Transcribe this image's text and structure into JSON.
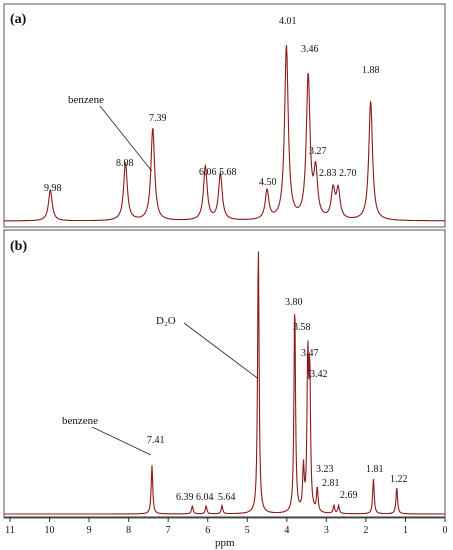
{
  "chart_data": [
    {
      "type": "line",
      "panel": "(a)",
      "xlabel": "",
      "xlim": [
        11,
        0
      ],
      "line_color": "#8b1a1a",
      "peaks": [
        {
          "x": 9.98,
          "label": "9.98",
          "h": 0.16
        },
        {
          "x": 8.08,
          "label": "8.08",
          "h": 0.3
        },
        {
          "x": 7.39,
          "label": "7.39",
          "h": 0.48
        },
        {
          "x": 6.06,
          "label": "6.06",
          "h": 0.28
        },
        {
          "x": 5.68,
          "label": "5.68",
          "h": 0.24
        },
        {
          "x": 4.5,
          "label": "4.50",
          "h": 0.15
        },
        {
          "x": 4.01,
          "label": "4.01",
          "h": 0.9
        },
        {
          "x": 3.46,
          "label": "3.46",
          "h": 0.74
        },
        {
          "x": 3.27,
          "label": "3.27",
          "h": 0.24
        },
        {
          "x": 2.83,
          "label": "2.83",
          "h": 0.15
        },
        {
          "x": 2.7,
          "label": "2.70",
          "h": 0.15
        },
        {
          "x": 1.88,
          "label": "1.88",
          "h": 0.62
        }
      ],
      "annotations": [
        {
          "text": "benzene",
          "points_to": 7.39
        }
      ]
    },
    {
      "type": "line",
      "panel": "(b)",
      "xlabel": "ppm",
      "xlim": [
        11,
        0
      ],
      "xticks": [
        "11",
        "10",
        "9",
        "8",
        "7",
        "6",
        "5",
        "4",
        "3",
        "2",
        "1",
        "0"
      ],
      "line_color": "#8b1a1a",
      "peaks": [
        {
          "x": 7.41,
          "label": "7.41",
          "h": 0.18
        },
        {
          "x": 6.39,
          "label": "6.39",
          "h": 0.03
        },
        {
          "x": 6.04,
          "label": "6.04",
          "h": 0.03
        },
        {
          "x": 5.64,
          "label": "5.64",
          "h": 0.03
        },
        {
          "x": 4.72,
          "label": "",
          "h": 1.0
        },
        {
          "x": 3.8,
          "label": "3.80",
          "h": 0.78
        },
        {
          "x": 3.58,
          "label": "3.58",
          "h": 0.16
        },
        {
          "x": 3.47,
          "label": "3.47",
          "h": 0.56
        },
        {
          "x": 3.42,
          "label": "3.42",
          "h": 0.5
        },
        {
          "x": 3.23,
          "label": "3.23",
          "h": 0.09
        },
        {
          "x": 2.81,
          "label": "2.81",
          "h": 0.03
        },
        {
          "x": 2.69,
          "label": "2.69",
          "h": 0.03
        },
        {
          "x": 1.81,
          "label": "1.81",
          "h": 0.13
        },
        {
          "x": 1.22,
          "label": "1.22",
          "h": 0.1
        }
      ],
      "annotations": [
        {
          "text": "benzene",
          "points_to": 7.41
        },
        {
          "text": "D₂O",
          "points_to": 4.72
        }
      ]
    }
  ]
}
